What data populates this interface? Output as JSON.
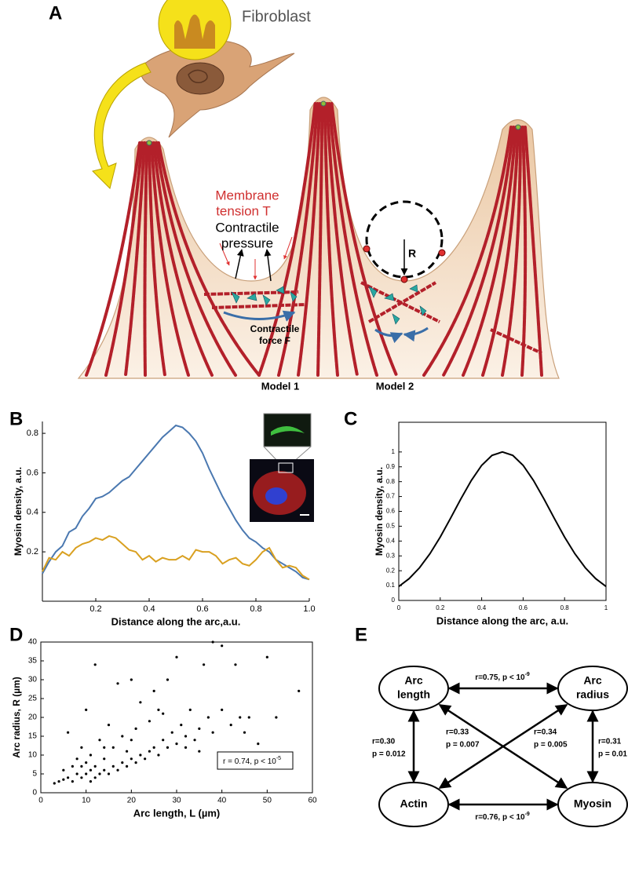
{
  "panel_labels": [
    "A",
    "B",
    "C",
    "D",
    "E"
  ],
  "illustration": {
    "cell_label": "Fibroblast",
    "membrane_tension": [
      "Membrane",
      "tension T"
    ],
    "contractile_pressure": [
      "Contractile",
      "pressure"
    ],
    "contractile_force": [
      "Contractile",
      "force F"
    ],
    "radius": "R",
    "models": [
      "Model 1",
      "Model 2"
    ]
  },
  "chart_data": [
    {
      "type": "line",
      "xlabel": "Distance along the arc,a.u.",
      "ylabel": "Myosin density, a.u.",
      "x": [
        0,
        0.025,
        0.05,
        0.075,
        0.1,
        0.125,
        0.15,
        0.175,
        0.2,
        0.225,
        0.25,
        0.275,
        0.3,
        0.325,
        0.35,
        0.375,
        0.4,
        0.425,
        0.45,
        0.475,
        0.5,
        0.525,
        0.55,
        0.575,
        0.6,
        0.625,
        0.65,
        0.675,
        0.7,
        0.725,
        0.75,
        0.775,
        0.8,
        0.825,
        0.85,
        0.875,
        0.9,
        0.925,
        0.95,
        0.975,
        1
      ],
      "series": [
        {
          "color": "#4a78b0",
          "values": [
            0.09,
            0.15,
            0.2,
            0.23,
            0.3,
            0.32,
            0.38,
            0.42,
            0.47,
            0.48,
            0.5,
            0.53,
            0.56,
            0.58,
            0.62,
            0.66,
            0.7,
            0.74,
            0.78,
            0.81,
            0.84,
            0.83,
            0.8,
            0.76,
            0.7,
            0.62,
            0.55,
            0.48,
            0.42,
            0.36,
            0.31,
            0.27,
            0.25,
            0.22,
            0.2,
            0.16,
            0.14,
            0.12,
            0.1,
            0.07,
            0.06
          ]
        },
        {
          "color": "#d9a020",
          "values": [
            0.1,
            0.17,
            0.16,
            0.2,
            0.18,
            0.22,
            0.24,
            0.25,
            0.27,
            0.26,
            0.28,
            0.27,
            0.24,
            0.21,
            0.2,
            0.16,
            0.18,
            0.15,
            0.17,
            0.16,
            0.16,
            0.18,
            0.16,
            0.21,
            0.2,
            0.2,
            0.18,
            0.14,
            0.16,
            0.17,
            0.14,
            0.13,
            0.16,
            0.2,
            0.22,
            0.16,
            0.12,
            0.13,
            0.12,
            0.08,
            0.06
          ]
        }
      ],
      "xlim": [
        0,
        1
      ],
      "ylim": [
        -0.05,
        0.86
      ],
      "xticks": [
        0.2,
        0.4,
        0.6,
        0.8,
        {
          "value": 1,
          "label": "1.0"
        }
      ],
      "yticks": [
        0.2,
        0.4,
        0.6,
        0.8
      ],
      "frame": false
    },
    {
      "type": "line",
      "xlabel": "Distance along the arc, a.u.",
      "ylabel": "Myosin density, a.u.",
      "x": [
        0,
        0.05,
        0.1,
        0.15,
        0.2,
        0.25,
        0.3,
        0.35,
        0.4,
        0.45,
        0.5,
        0.55,
        0.6,
        0.65,
        0.7,
        0.75,
        0.8,
        0.85,
        0.9,
        0.95,
        1
      ],
      "series": [
        {
          "color": "#000000",
          "values": [
            0.094,
            0.147,
            0.22,
            0.314,
            0.427,
            0.554,
            0.685,
            0.808,
            0.91,
            0.977,
            1,
            0.977,
            0.91,
            0.808,
            0.685,
            0.554,
            0.427,
            0.314,
            0.22,
            0.147,
            0.094
          ]
        }
      ],
      "xlim": [
        0,
        1
      ],
      "ylim": [
        0,
        1.2
      ],
      "xticks": [
        0,
        0.2,
        0.4,
        0.6,
        0.8,
        1
      ],
      "yticks": [
        0,
        0.1,
        0.2,
        0.3,
        0.4,
        0.5,
        0.6,
        0.7,
        0.8,
        0.9,
        1
      ],
      "frame": true
    },
    {
      "type": "scatter",
      "xlabel": "Arc length, L (µm)",
      "ylabel": "Arc radius, R (µm)",
      "annotation": "r = 0.74, p < 10",
      "annotation_sup": "-5",
      "color": "#000000",
      "x": [
        3,
        4,
        5,
        5,
        6,
        6,
        7,
        7,
        8,
        8,
        9,
        9,
        10,
        10,
        10,
        11,
        11,
        12,
        12,
        12,
        13,
        13,
        14,
        14,
        15,
        15,
        16,
        16,
        17,
        17,
        18,
        18,
        19,
        19,
        20,
        20,
        21,
        21,
        22,
        22,
        23,
        24,
        24,
        25,
        25,
        26,
        27,
        27,
        28,
        28,
        29,
        30,
        30,
        31,
        32,
        33,
        34,
        35,
        36,
        37,
        38,
        38,
        40,
        40,
        42,
        43,
        44,
        45,
        46,
        48,
        50,
        52,
        57,
        35,
        26,
        32,
        20,
        14,
        9,
        11
      ],
      "values": [
        2.5,
        3,
        3.5,
        6,
        4,
        16,
        3,
        7,
        5,
        9,
        4,
        12,
        5,
        8,
        22,
        6,
        10,
        4,
        7,
        34,
        5,
        14,
        6,
        9,
        5,
        18,
        7,
        12,
        6,
        29,
        8,
        15,
        7,
        11,
        9,
        30,
        8,
        17,
        10,
        24,
        9,
        11,
        19,
        12,
        27,
        10,
        14,
        21,
        12,
        30,
        16,
        13,
        36,
        18,
        15,
        22,
        14,
        17,
        34,
        20,
        16,
        40,
        39,
        22,
        18,
        34,
        20,
        16,
        20,
        13,
        36,
        20,
        27,
        11,
        22,
        12,
        14,
        12,
        7,
        3
      ],
      "xlim": [
        0,
        60
      ],
      "ylim": [
        0,
        40
      ],
      "xticks": [
        0,
        10,
        20,
        30,
        40,
        50,
        60
      ],
      "yticks": [
        0,
        5,
        10,
        15,
        20,
        25,
        30,
        35,
        40
      ],
      "frame": true
    }
  ],
  "diagram": {
    "nodes": [
      {
        "label": [
          "Arc",
          "length"
        ]
      },
      {
        "label": [
          "Arc",
          "radius"
        ]
      },
      {
        "label": [
          "Actin"
        ]
      },
      {
        "label": [
          "Myosin"
        ]
      }
    ],
    "edges": [
      {
        "label": [
          "r=0.75, p < 10"
        ],
        "sup": "-9"
      },
      {
        "label": [
          "r=0.30",
          "p = 0.012"
        ]
      },
      {
        "label": [
          "r=0.33",
          "p = 0.007"
        ]
      },
      {
        "label": [
          "r=0.34",
          "p = 0.005"
        ]
      },
      {
        "label": [
          "r=0.31",
          "p = 0.01"
        ]
      },
      {
        "label": [
          "r=0.76, p < 10"
        ],
        "sup": "-9"
      }
    ]
  }
}
